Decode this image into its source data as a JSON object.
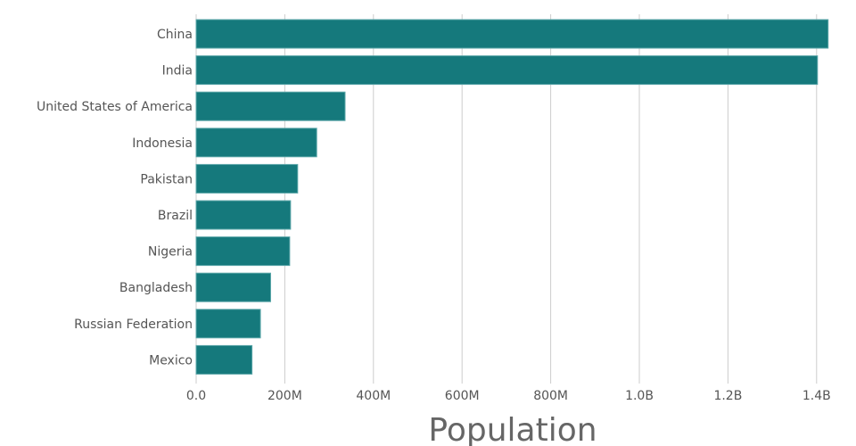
{
  "chart_data": {
    "type": "bar",
    "orientation": "horizontal",
    "title": "",
    "xlabel": "Population",
    "ylabel": "",
    "categories": [
      "China",
      "India",
      "United States of America",
      "Indonesia",
      "Pakistan",
      "Brazil",
      "Nigeria",
      "Bangladesh",
      "Russian Federation",
      "Mexico"
    ],
    "values": [
      1426000000,
      1402000000,
      336000000,
      272000000,
      229000000,
      213000000,
      211000000,
      168000000,
      145000000,
      126000000
    ],
    "xlim": [
      0,
      1430000000
    ],
    "xticks": [
      0,
      200000000,
      400000000,
      600000000,
      800000000,
      1000000000,
      1200000000,
      1400000000
    ],
    "xtick_labels": [
      "0.0",
      "200M",
      "400M",
      "600M",
      "800M",
      "1.0B",
      "1.2B",
      "1.4B"
    ],
    "grid": true,
    "colors": {
      "bar": "#15797c",
      "bar_border": "#5aa6a8",
      "grid": "#cccccc",
      "text": "#555555",
      "axis_title": "#666666"
    }
  }
}
